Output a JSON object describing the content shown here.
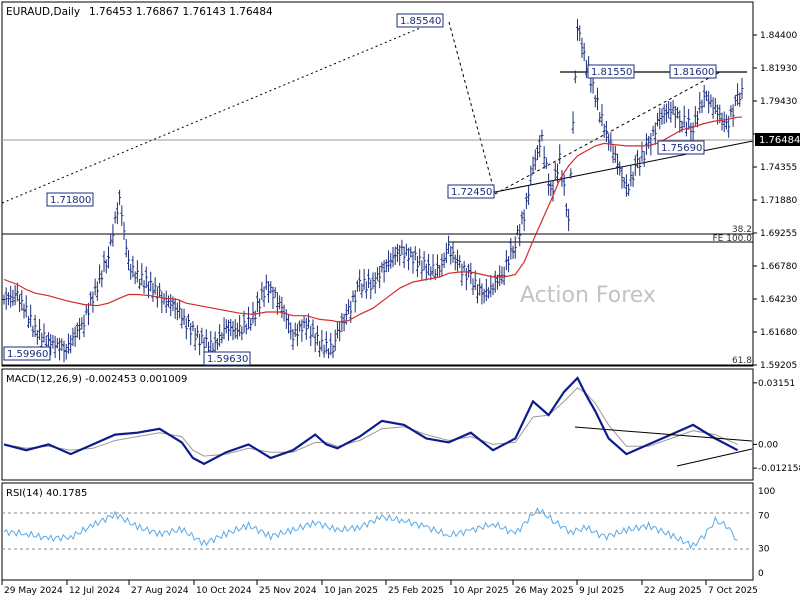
{
  "header": {
    "symbol_label": "EURAUD,Daily",
    "ohlc": "1.76453 1.76867 1.76143 1.76484"
  },
  "watermark": "Action Forex",
  "colors": {
    "price": "#1b2d7a",
    "ma": "#d62a2a",
    "macd": "#0d1c8c",
    "signal": "#9a9a9a",
    "rsi": "#5aa9e6",
    "trendline": "#000000",
    "guide": "#8a8a8a"
  },
  "chart_data": [
    {
      "type": "line",
      "name": "price",
      "xlabel": "",
      "ylabel": "",
      "ylim": [
        1.5845,
        1.8625
      ],
      "grid": false,
      "y_ticks": [
        "1.84400",
        "1.81930",
        "1.79430",
        "1.76930",
        "1.74355",
        "1.71880",
        "1.69255",
        "1.66780",
        "1.64230",
        "1.61680",
        "1.59205"
      ],
      "x_ticks": [
        "29 May 2024",
        "12 Jul 2024",
        "27 Aug 2024",
        "10 Oct 2024",
        "25 Nov 2024",
        "10 Jan 2025",
        "25 Feb 2025",
        "10 Apr 2025",
        "26 May 2025",
        "9 Jul 2025",
        "22 Aug 2025",
        "7 Oct 2025"
      ],
      "x": [
        0,
        6,
        10,
        14,
        20,
        28,
        36,
        42,
        47,
        52,
        56,
        60,
        66,
        72,
        78,
        82,
        88,
        94,
        100,
        106,
        112,
        118,
        124,
        130,
        136,
        142,
        148,
        150,
        155,
        160,
        166,
        172,
        178,
        184,
        190,
        196,
        200,
        205,
        210,
        215,
        220,
        225,
        230,
        234,
        238,
        242,
        246,
        250,
        254,
        258,
        262,
        266,
        270,
        275,
        280,
        285,
        290,
        295,
        300,
        305,
        310,
        315,
        320,
        325,
        330,
        332
      ],
      "series": [
        {
          "values": [
            1.637,
            1.64,
            1.627,
            1.612,
            1.603,
            1.597,
            1.62,
            1.648,
            1.673,
            1.718,
            1.665,
            1.655,
            1.648,
            1.637,
            1.63,
            1.618,
            1.605,
            1.598,
            1.614,
            1.612,
            1.622,
            1.648,
            1.635,
            1.608,
            1.618,
            1.601,
            1.5963,
            1.61,
            1.627,
            1.648,
            1.65,
            1.665,
            1.676,
            1.671,
            1.662,
            1.66,
            1.678,
            1.663,
            1.654,
            1.64,
            1.647,
            1.66,
            1.683,
            1.703,
            1.744,
            1.765,
            1.721,
            1.75,
            1.7,
            1.8554,
            1.826,
            1.8,
            1.774,
            1.752,
            1.7245,
            1.745,
            1.76,
            1.782,
            1.79,
            1.78,
            1.775,
            1.801,
            1.79,
            1.775,
            1.797,
            1.806
          ]
        },
        {
          "name": "ma",
          "values": [
            1.653,
            1.649,
            1.645,
            1.642,
            1.64,
            1.636,
            1.633,
            1.632,
            1.634,
            1.638,
            1.641,
            1.641,
            1.64,
            1.638,
            1.637,
            1.634,
            1.632,
            1.63,
            1.628,
            1.626,
            1.625,
            1.627,
            1.627,
            1.624,
            1.624,
            1.621,
            1.62,
            1.619,
            1.62,
            1.625,
            1.63,
            1.638,
            1.646,
            1.651,
            1.653,
            1.655,
            1.658,
            1.659,
            1.659,
            1.657,
            1.655,
            1.655,
            1.657,
            1.667,
            1.684,
            1.7,
            1.716,
            1.733,
            1.744,
            1.752,
            1.756,
            1.76,
            1.762,
            1.761,
            1.76,
            1.76,
            1.76,
            1.763,
            1.768,
            1.773,
            1.775,
            1.778,
            1.78,
            1.781,
            1.783,
            1.783
          ]
        }
      ],
      "annotations": [
        "1.85540",
        "1.71800",
        "1.81550",
        "1.81600",
        "1.72450",
        "1.75690",
        "1.59960",
        "1.59630"
      ],
      "level_labels": [
        "38.2",
        "FE 100.0",
        "61.8"
      ],
      "current_price": "1.76484"
    },
    {
      "type": "line",
      "name": "MACD(12,26,9)",
      "legend_text": "MACD(12,26,9) -0.002453 0.001009",
      "ylim": [
        -0.0162,
        0.034
      ],
      "y_ticks": [
        "0.03151",
        "0.00",
        "-0.012158"
      ],
      "x": [
        0,
        10,
        20,
        30,
        40,
        50,
        60,
        70,
        80,
        85,
        90,
        100,
        110,
        120,
        130,
        140,
        145,
        150,
        160,
        170,
        180,
        190,
        200,
        210,
        220,
        230,
        238,
        245,
        252,
        258,
        262,
        266,
        272,
        280,
        290,
        300,
        310,
        320,
        330
      ],
      "series": [
        {
          "name": "MACD",
          "values": [
            0.0,
            -0.003,
            0.0,
            -0.005,
            0.0,
            0.005,
            0.006,
            0.008,
            0.001,
            -0.007,
            -0.01,
            -0.004,
            0.0,
            -0.007,
            -0.003,
            0.005,
            0.0,
            -0.002,
            0.004,
            0.012,
            0.01,
            0.003,
            0.001,
            0.006,
            -0.003,
            0.003,
            0.022,
            0.015,
            0.027,
            0.034,
            0.025,
            0.017,
            0.003,
            -0.005,
            0.0,
            0.005,
            0.01,
            0.003,
            -0.003
          ]
        },
        {
          "name": "Signal",
          "values": [
            0.0,
            -0.002,
            -0.001,
            -0.003,
            -0.002,
            0.002,
            0.004,
            0.006,
            0.004,
            -0.003,
            -0.006,
            -0.005,
            -0.002,
            -0.004,
            -0.004,
            0.001,
            0.001,
            -0.001,
            0.002,
            0.008,
            0.009,
            0.005,
            0.002,
            0.004,
            0.0,
            0.001,
            0.014,
            0.015,
            0.022,
            0.029,
            0.026,
            0.021,
            0.01,
            -0.001,
            -0.001,
            0.003,
            0.007,
            0.005,
            0.0
          ]
        }
      ]
    },
    {
      "type": "line",
      "name": "RSI(14)",
      "legend_text": "RSI(14) 40.1785",
      "ylim": [
        0,
        100
      ],
      "y_ticks": [
        "100",
        "70",
        "30",
        "0"
      ],
      "x": [
        0,
        10,
        20,
        30,
        40,
        50,
        60,
        70,
        80,
        90,
        100,
        110,
        120,
        130,
        140,
        150,
        160,
        170,
        180,
        190,
        200,
        210,
        220,
        230,
        240,
        248,
        255,
        262,
        270,
        280,
        290,
        300,
        310,
        315,
        320,
        325,
        330
      ],
      "series": [
        {
          "name": "RSI",
          "values": [
            50,
            48,
            42,
            44,
            58,
            72,
            56,
            48,
            53,
            36,
            48,
            58,
            45,
            52,
            62,
            52,
            56,
            68,
            64,
            56,
            46,
            52,
            60,
            48,
            78,
            62,
            50,
            55,
            44,
            52,
            58,
            46,
            33,
            46,
            64,
            58,
            40
          ]
        }
      ]
    }
  ]
}
